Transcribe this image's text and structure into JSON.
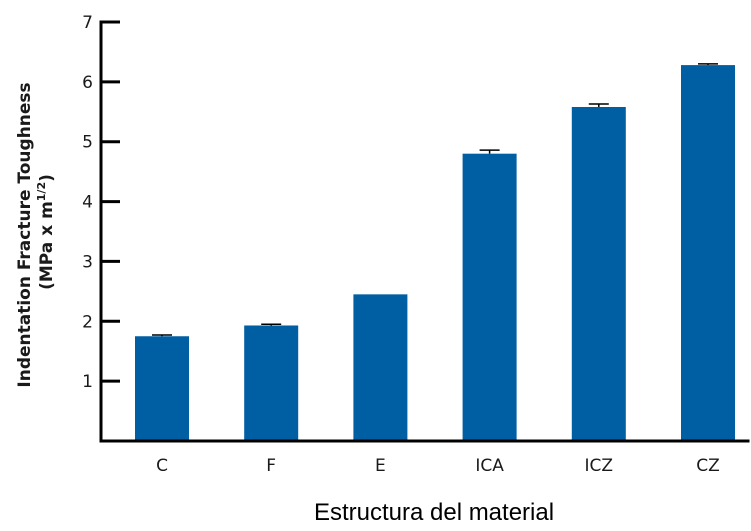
{
  "chart_data": {
    "type": "bar",
    "categories": [
      "C",
      "F",
      "E",
      "ICA",
      "ICZ",
      "CZ"
    ],
    "values": [
      1.75,
      1.93,
      2.45,
      4.8,
      5.58,
      6.28
    ],
    "errors": [
      0.02,
      0.02,
      0.0,
      0.06,
      0.05,
      0.02
    ],
    "xlabel": "Estructura del material",
    "ylabel": {
      "line1": "Indentation Fracture Toughness",
      "line2_base": "(MPa x m",
      "line2_sup": "1/2",
      "line2_end": ")"
    },
    "ylim": [
      0,
      7
    ],
    "yticks": [
      1,
      2,
      3,
      4,
      5,
      6,
      7
    ],
    "grid": false,
    "legend": "none",
    "bar_color": "#005ea2",
    "axis_color": "#000000"
  }
}
